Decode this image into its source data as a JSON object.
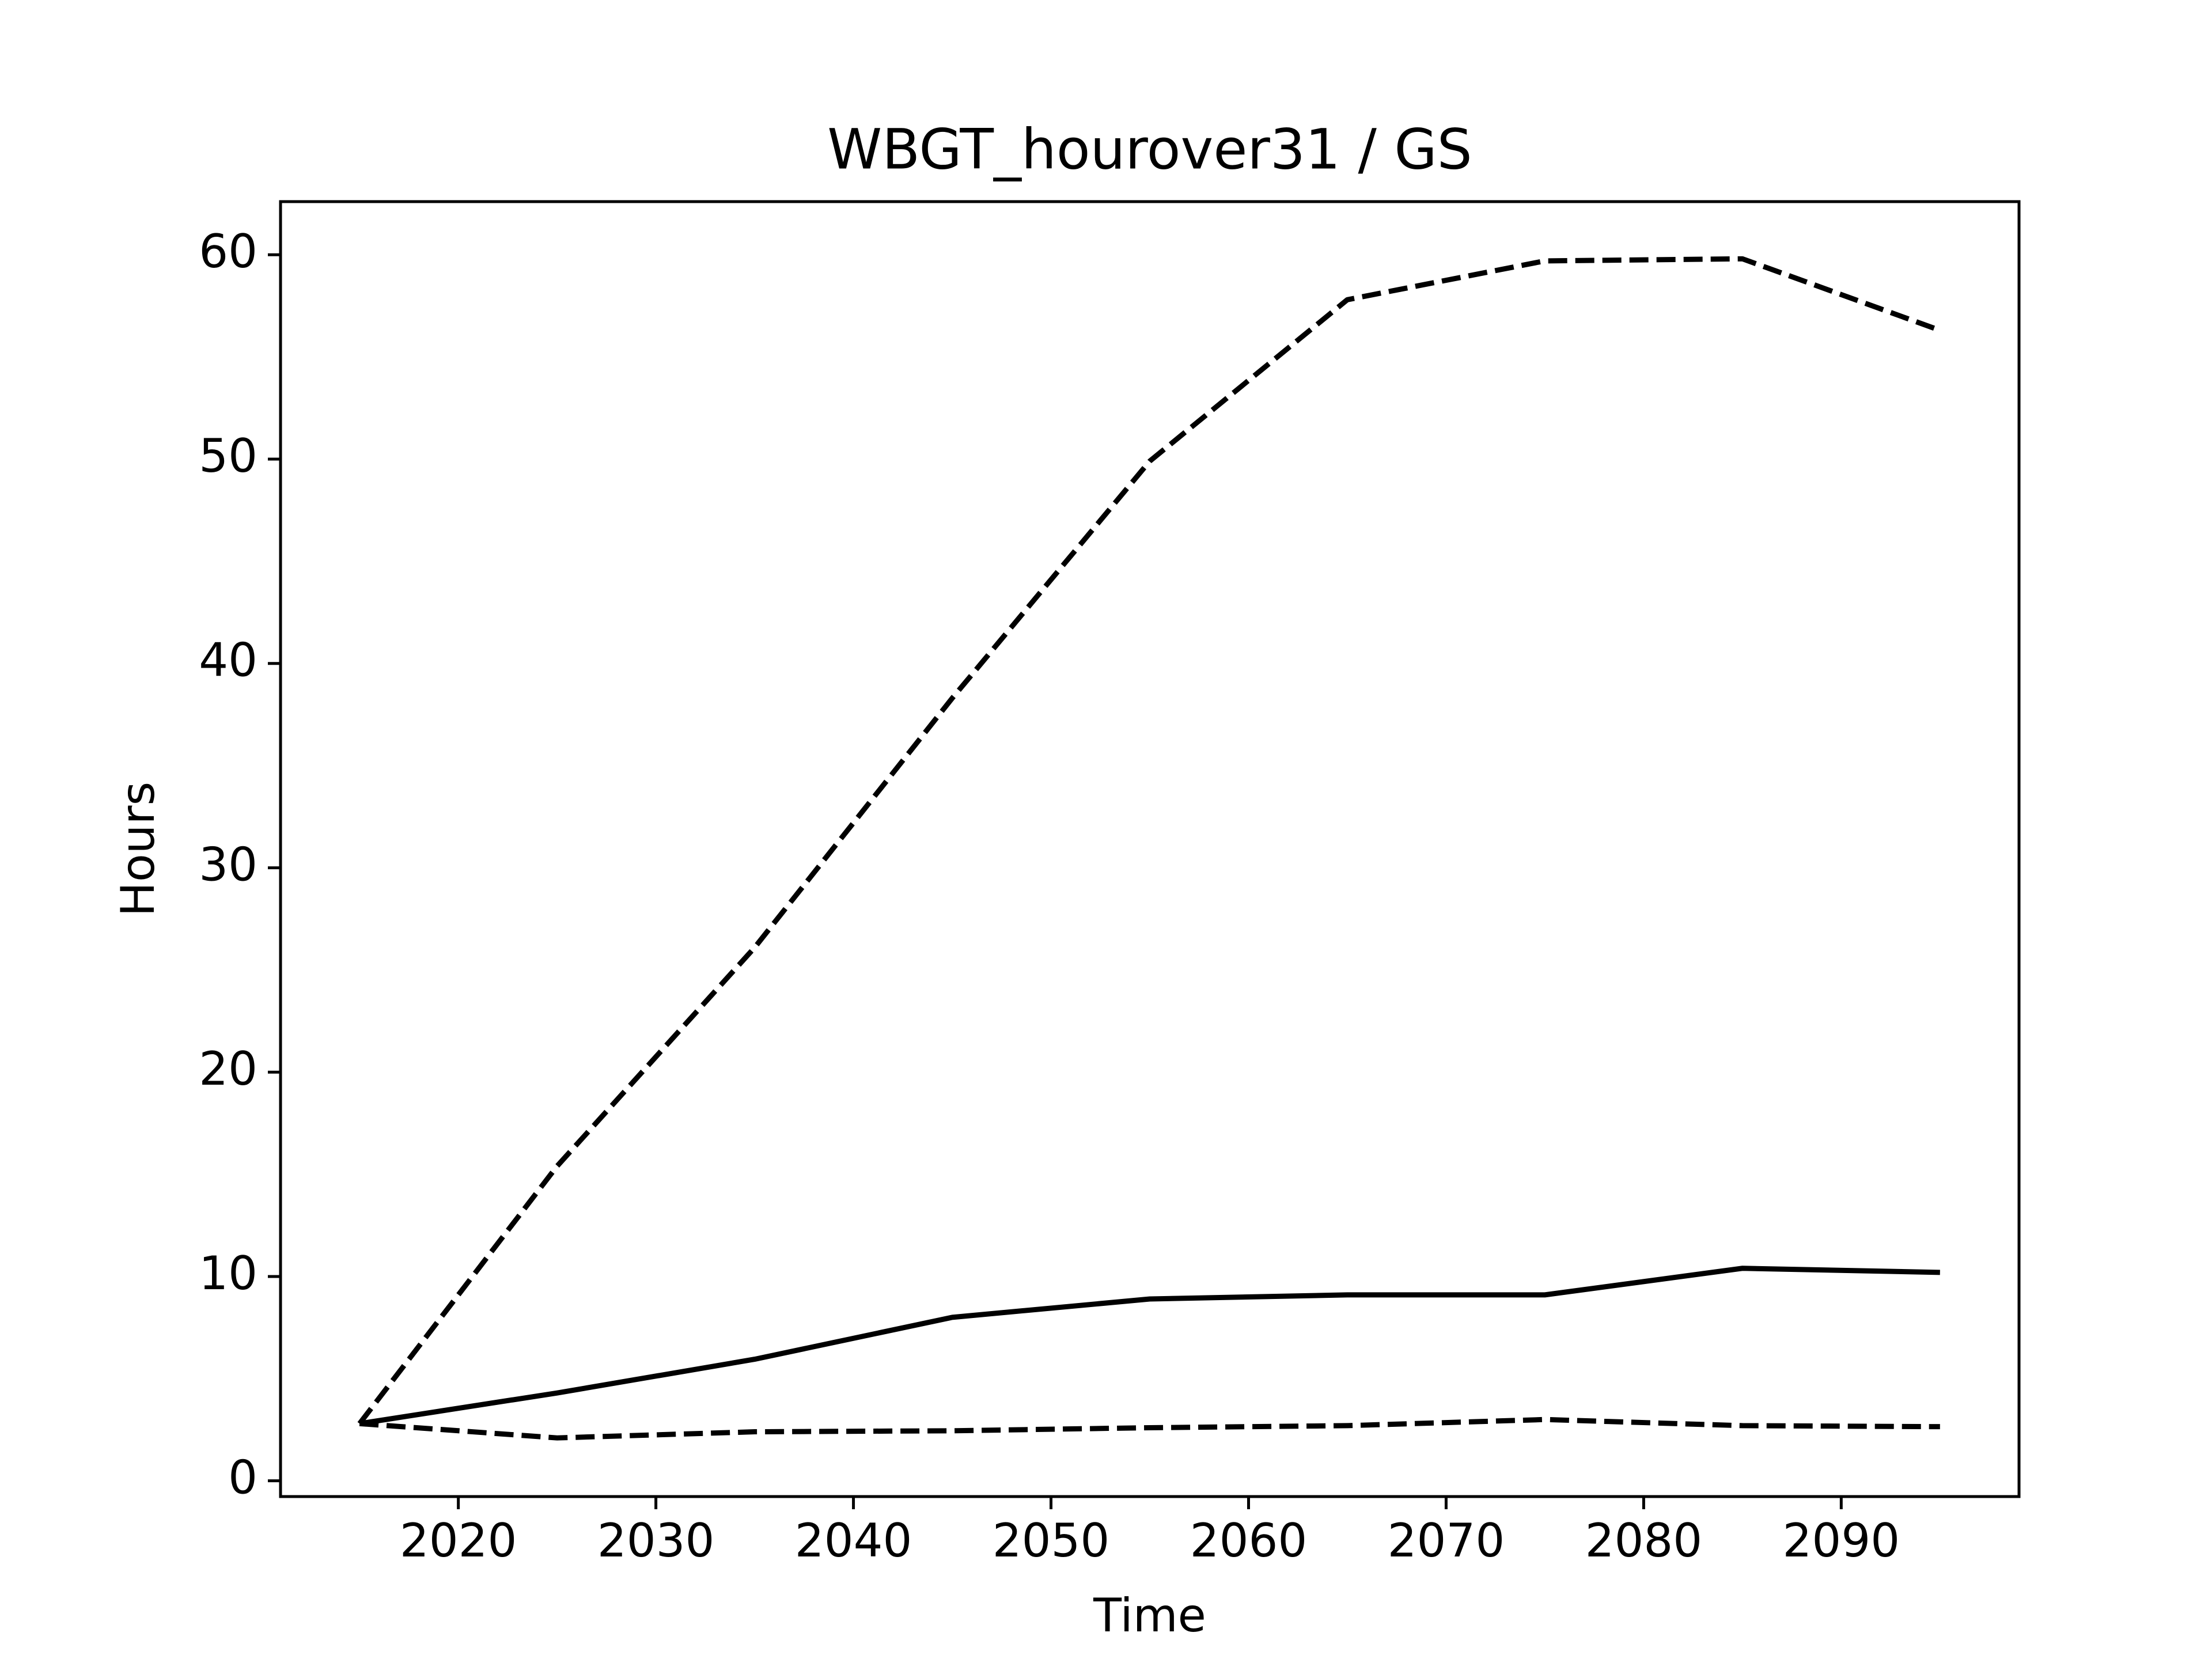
{
  "chart_data": {
    "type": "line",
    "title": "WBGT_hourover31 / GS",
    "x_label": "Time",
    "y_label": "Hours",
    "x": [
      2015,
      2025,
      2035,
      2045,
      2055,
      2065,
      2075,
      2085,
      2095
    ],
    "series": [
      {
        "color": "#000000",
        "linestyle": "dashed",
        "values": [
          2.8,
          15.4,
          26.1,
          38.3,
          49.9,
          57.8,
          59.7,
          59.8,
          56.3
        ]
      },
      {
        "color": "#000000",
        "linestyle": "solid",
        "values": [
          2.8,
          4.3,
          5.95,
          8.0,
          8.9,
          9.1,
          9.1,
          10.4,
          10.2
        ]
      },
      {
        "color": "#000000",
        "linestyle": "dashed",
        "values": [
          2.8,
          2.1,
          2.4,
          2.45,
          2.6,
          2.7,
          3.0,
          2.7,
          2.65
        ]
      }
    ],
    "xlim": [
      2011,
      2099
    ],
    "xticks": [
      2020,
      2030,
      2040,
      2050,
      2060,
      2070,
      2080,
      2090
    ],
    "ylim": [
      -0.77,
      62.6
    ],
    "yticks": [
      0,
      10,
      20,
      30,
      40,
      50,
      60
    ],
    "grid": false
  }
}
